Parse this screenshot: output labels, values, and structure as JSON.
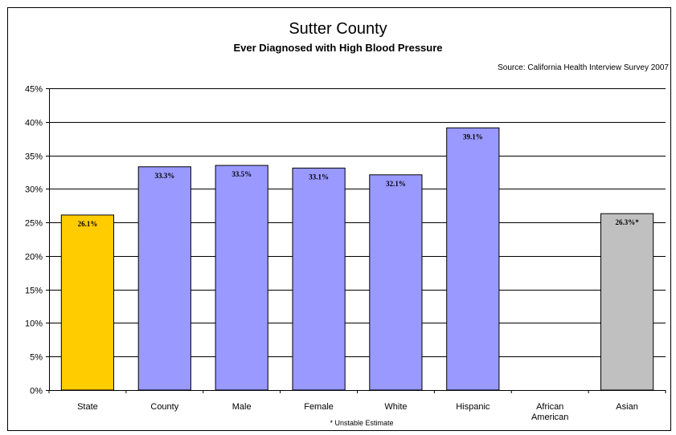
{
  "chart_data": {
    "type": "bar",
    "title": "Sutter County",
    "subtitle": "Ever Diagnosed with High Blood Pressure",
    "source": "Source: California Health Interview Survey 2007",
    "footnote": "* Unstable Estimate",
    "xlabel": "",
    "ylabel": "",
    "ylim": [
      0,
      45
    ],
    "y_ticks": [
      "0%",
      "5%",
      "10%",
      "15%",
      "20%",
      "25%",
      "30%",
      "35%",
      "40%",
      "45%"
    ],
    "grid": true,
    "categories": [
      [
        "State"
      ],
      [
        "County"
      ],
      [
        "Male"
      ],
      [
        "Female"
      ],
      [
        "White"
      ],
      [
        "Hispanic"
      ],
      [
        "African",
        "American"
      ],
      [
        "Asian"
      ]
    ],
    "values": [
      26.1,
      33.3,
      33.5,
      33.1,
      32.1,
      39.1,
      null,
      26.3
    ],
    "data_labels": [
      "26.1%",
      "33.3%",
      "33.5%",
      "33.1%",
      "32.1%",
      "39.1%",
      "",
      "26.3%*"
    ],
    "bar_colors": [
      "#ffcc00",
      "#9999ff",
      "#9999ff",
      "#9999ff",
      "#9999ff",
      "#9999ff",
      "#9999ff",
      "#c0c0c0"
    ]
  }
}
